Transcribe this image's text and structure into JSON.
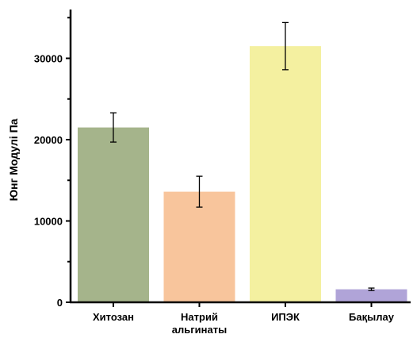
{
  "chart_data": {
    "type": "bar",
    "ylabel": "Юнг Модулі Па",
    "xlabel": "",
    "title": "",
    "ylim": [
      0,
      36000
    ],
    "yticks": [
      0,
      10000,
      20000,
      30000
    ],
    "ytick_labels": [
      "0",
      "10000",
      "20000",
      "30000"
    ],
    "categories": [
      [
        "Хитозан"
      ],
      [
        "Натрий",
        "альгинаты"
      ],
      [
        "ИПЭК"
      ],
      [
        "Бақылау"
      ]
    ],
    "values": [
      21500,
      13600,
      31500,
      1600
    ],
    "errors": [
      1800,
      1900,
      2900,
      150
    ],
    "colors": [
      "#a5b48b",
      "#f8c59c",
      "#f4f0a0",
      "#b0a4d8"
    ],
    "grid": false,
    "legend": "none"
  }
}
